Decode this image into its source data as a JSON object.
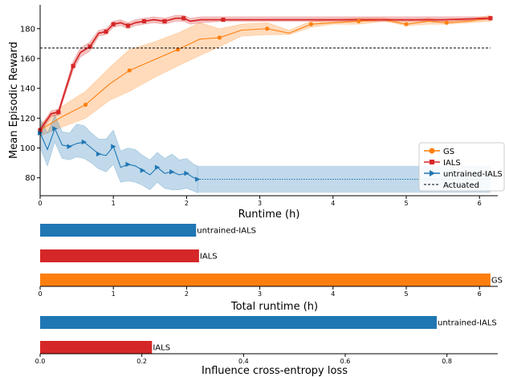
{
  "chart_data": [
    {
      "type": "line",
      "xlabel": "Runtime (h)",
      "ylabel": "Mean Episodic Reward",
      "xlim": [
        0,
        6.25
      ],
      "ylim": [
        68,
        196
      ],
      "xticks": [
        0,
        1,
        2,
        3,
        4,
        5,
        6
      ],
      "yticks": [
        80,
        100,
        120,
        140,
        160,
        180
      ],
      "legend_position": "lower-right",
      "series": [
        {
          "name": "GS",
          "color": "#ff7f0e",
          "marker": "circle",
          "x": [
            0,
            0.3,
            0.62,
            0.95,
            1.22,
            1.55,
            1.88,
            2.18,
            2.45,
            2.75,
            3.1,
            3.4,
            3.7,
            4.0,
            4.35,
            4.7,
            5.0,
            5.3,
            5.55,
            5.85,
            6.15
          ],
          "y": [
            112,
            121,
            129,
            143,
            152,
            159,
            166,
            173,
            174,
            179,
            180,
            177,
            183,
            184,
            185,
            186,
            183,
            185,
            184,
            185,
            187
          ],
          "band_low": [
            108,
            114,
            120,
            132,
            138,
            147,
            155,
            162,
            168,
            175,
            176,
            176,
            181,
            183,
            183,
            185,
            182,
            183,
            183,
            184,
            185
          ],
          "band_high": [
            116,
            128,
            138,
            154,
            166,
            171,
            177,
            184,
            180,
            183,
            184,
            179,
            185,
            186,
            187,
            187,
            185,
            187,
            185,
            186,
            189
          ],
          "mark_every": [
            0,
            2,
            4,
            6,
            8,
            10,
            12,
            14,
            16,
            18,
            20
          ]
        },
        {
          "name": "IALS",
          "color": "#d62728",
          "marker": "square",
          "x": [
            0,
            0.15,
            0.25,
            0.45,
            0.55,
            0.68,
            0.8,
            0.9,
            1.0,
            1.1,
            1.2,
            1.3,
            1.42,
            1.55,
            1.7,
            1.85,
            1.96,
            2.05,
            2.2,
            2.5,
            3.0,
            3.5,
            4.0,
            4.5,
            5.0,
            5.5,
            6.15
          ],
          "y": [
            112,
            123,
            124,
            155,
            164,
            168,
            177,
            178,
            183,
            184,
            182,
            184,
            185,
            186,
            185,
            187,
            187,
            185,
            186,
            186,
            186,
            186,
            186,
            186,
            186,
            186,
            187
          ],
          "band_low": [
            110,
            121,
            122,
            152,
            161,
            165,
            175,
            176,
            181,
            182,
            180,
            182,
            183,
            184,
            183,
            185,
            185,
            183,
            184,
            185,
            185,
            185,
            185,
            185,
            185,
            185,
            186
          ],
          "band_high": [
            114,
            125,
            126,
            158,
            167,
            171,
            179,
            180,
            185,
            186,
            184,
            186,
            187,
            188,
            187,
            189,
            189,
            187,
            188,
            188,
            188,
            188,
            188,
            188,
            188,
            188,
            188
          ],
          "mark_every": [
            0,
            2,
            3,
            5,
            7,
            8,
            10,
            12,
            14,
            16,
            19,
            26
          ]
        },
        {
          "name": "untrained-IALS",
          "color": "#1f77b4",
          "marker": "triangle-right",
          "x": [
            0,
            0.1,
            0.2,
            0.3,
            0.4,
            0.5,
            0.6,
            0.7,
            0.8,
            0.9,
            1.0,
            1.1,
            1.2,
            1.3,
            1.4,
            1.5,
            1.6,
            1.7,
            1.8,
            1.9,
            2.0,
            2.1,
            2.15
          ],
          "y": [
            110,
            99,
            113,
            102,
            101,
            103,
            104,
            100,
            96,
            95,
            101,
            87,
            89,
            88,
            85,
            82,
            87,
            83,
            84,
            82,
            83,
            80,
            79
          ],
          "band_low": [
            100,
            88,
            104,
            93,
            92,
            94,
            93,
            90,
            86,
            84,
            89,
            77,
            78,
            77,
            75,
            72,
            77,
            73,
            72,
            72,
            73,
            71,
            70
          ],
          "band_high": [
            120,
            110,
            122,
            111,
            110,
            116,
            115,
            110,
            106,
            106,
            112,
            98,
            100,
            99,
            95,
            92,
            97,
            93,
            96,
            92,
            93,
            89,
            88
          ],
          "mark_every": [
            0,
            2,
            4,
            6,
            8,
            10,
            12,
            14,
            16,
            18,
            20,
            22
          ],
          "extension": {
            "x": [
              2.15,
              6.15
            ],
            "y": 79,
            "band_low": 70,
            "band_high": 88
          }
        },
        {
          "name": "Actuated",
          "color": "#000000",
          "style": "dashed",
          "y": 167
        }
      ]
    },
    {
      "type": "bar",
      "orientation": "horizontal",
      "xlabel": "Total runtime (h)",
      "xlim": [
        0,
        6.25
      ],
      "xticks": [
        0,
        1,
        2,
        3,
        4,
        5,
        6
      ],
      "categories": [
        "untrained-IALS",
        "IALS",
        "GS"
      ],
      "values": [
        2.13,
        2.17,
        6.15
      ],
      "colors": [
        "#1f77b4",
        "#d62728",
        "#ff7f0e"
      ]
    },
    {
      "type": "bar",
      "orientation": "horizontal",
      "xlabel": "Influence cross-entropy loss",
      "xlim": [
        0,
        0.9
      ],
      "xticks": [
        0.0,
        0.2,
        0.4,
        0.6,
        0.8
      ],
      "tick_labels": [
        "0.0",
        "0.2",
        "0.4",
        "0.6",
        "0.8"
      ],
      "categories": [
        "untrained-IALS",
        "IALS"
      ],
      "values": [
        0.78,
        0.22
      ],
      "colors": [
        "#1f77b4",
        "#d62728"
      ]
    }
  ]
}
